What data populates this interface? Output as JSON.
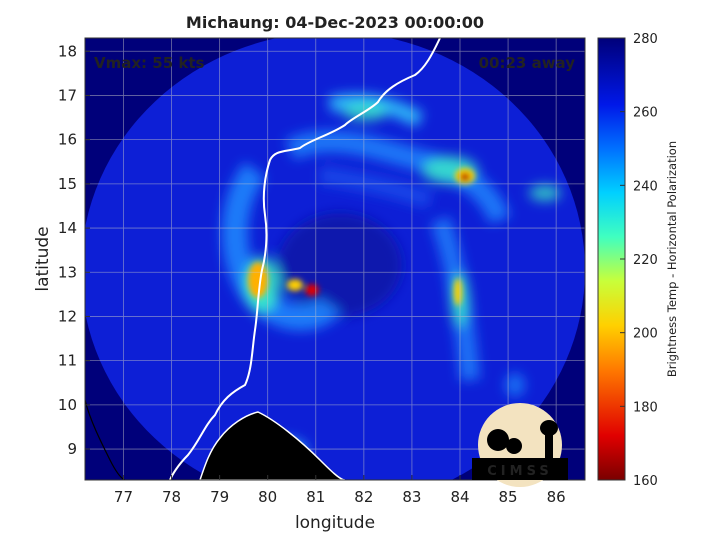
{
  "title": "Michaung: 04-Dec-2023 00:00:00",
  "vmax_label": "Vmax: 55 kts",
  "time_label": "00:23 away",
  "xlabel": "longitude",
  "ylabel": "latitude",
  "colorbar_label": "Brightness Temp - Horizontal Polarization",
  "logo_text": "CIMSS",
  "x_ticks": [
    "77",
    "78",
    "79",
    "80",
    "81",
    "82",
    "83",
    "84",
    "85",
    "86"
  ],
  "y_ticks": [
    "9",
    "10",
    "11",
    "12",
    "13",
    "14",
    "15",
    "16",
    "17",
    "18"
  ],
  "colorbar_ticks": [
    "160",
    "180",
    "200",
    "220",
    "240",
    "260",
    "280"
  ],
  "colors": {
    "background": "#00007a",
    "swath": "#0d1fd6",
    "coast": "#ffffff",
    "land": "#000000"
  },
  "chart_data": {
    "type": "heatmap",
    "title": "Michaung: 04-Dec-2023 00:00:00",
    "xlabel": "longitude",
    "ylabel": "latitude",
    "xlim": [
      76.2,
      86.6
    ],
    "ylim": [
      8.3,
      18.3
    ],
    "x_ticks": [
      77,
      78,
      79,
      80,
      81,
      82,
      83,
      84,
      85,
      86
    ],
    "y_ticks": [
      9,
      10,
      11,
      12,
      13,
      14,
      15,
      16,
      17,
      18
    ],
    "colorbar": {
      "label": "Brightness Temp - Horizontal Polarization",
      "min": 160,
      "max": 280,
      "ticks": [
        160,
        180,
        200,
        220,
        240,
        260,
        280
      ]
    },
    "grid": true,
    "features": [
      {
        "lon": 80.9,
        "lat": 12.55,
        "value": 175
      },
      {
        "lon": 84.1,
        "lat": 15.1,
        "value": 178
      },
      {
        "lon": 79.8,
        "lat": 12.8,
        "value": 205
      },
      {
        "lon": 80.6,
        "lat": 12.85,
        "value": 200
      },
      {
        "lon": 84.0,
        "lat": 12.6,
        "value": 225
      },
      {
        "lon": 85.8,
        "lat": 14.8,
        "value": 230
      },
      {
        "lon": 81.8,
        "lat": 16.5,
        "value": 225
      },
      {
        "lon": 83.9,
        "lat": 15.7,
        "value": 235
      }
    ]
  }
}
